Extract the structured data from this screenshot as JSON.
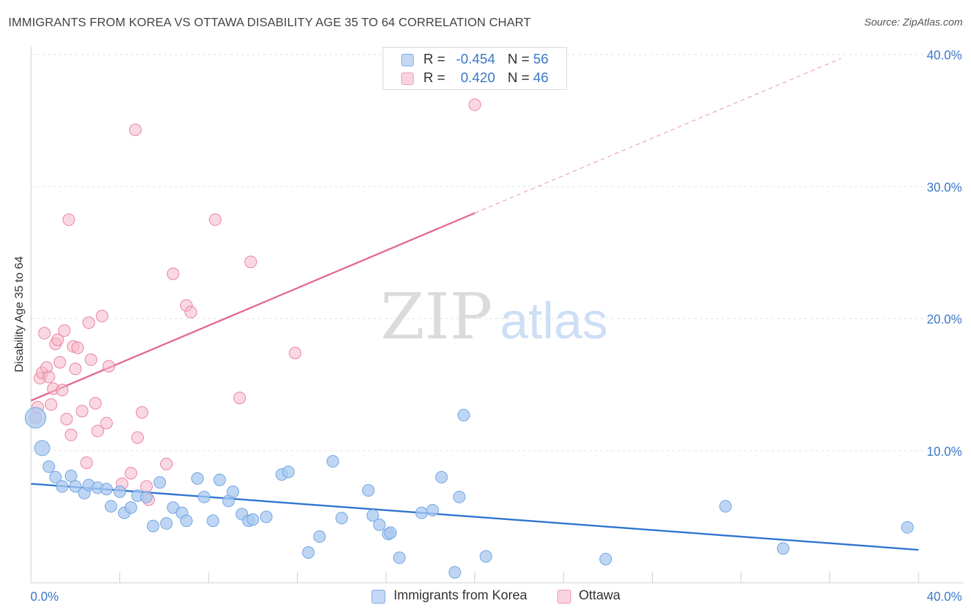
{
  "title": "IMMIGRANTS FROM KOREA VS OTTAWA DISABILITY AGE 35 TO 64 CORRELATION CHART",
  "source": "Source: ZipAtlas.com",
  "watermark": {
    "zip": "ZIP",
    "atlas": "atlas"
  },
  "legend_top": [
    {
      "r_label": "R =",
      "r_value": "-0.454",
      "n_label": "N =",
      "n_value": "56",
      "color": "#a8c8f0"
    },
    {
      "r_label": "R =",
      "r_value": "0.420",
      "n_label": "N =",
      "n_value": "46",
      "color": "#f5b8c8"
    }
  ],
  "legend_bottom": [
    {
      "label": "Immigrants from Korea",
      "color": "#a8c8f0"
    },
    {
      "label": "Ottawa",
      "color": "#f5b8c8"
    }
  ],
  "chart_data": {
    "type": "scatter",
    "title": "IMMIGRANTS FROM KOREA VS OTTAWA DISABILITY AGE 35 TO 64 CORRELATION CHART",
    "xlabel": "",
    "ylabel": "Disability Age 35 to 64",
    "xlim": [
      0,
      40
    ],
    "ylim": [
      0,
      40
    ],
    "x_tick_labels": [
      "0.0%",
      "40.0%"
    ],
    "y_ticks": [
      10,
      20,
      30,
      40
    ],
    "y_tick_labels": [
      "10.0%",
      "20.0%",
      "30.0%",
      "40.0%"
    ],
    "grid": "horizontal dashed",
    "series": [
      {
        "name": "Immigrants from Korea",
        "color": "#6fa3e0",
        "fill": "#a8c8f0",
        "r": -0.454,
        "n": 56,
        "trend": {
          "x": [
            0,
            40
          ],
          "y": [
            7.5,
            2.5
          ],
          "dashed_extension": false
        },
        "points": [
          [
            0.2,
            12.5,
            "large"
          ],
          [
            0.5,
            10.2,
            "medium"
          ],
          [
            0.8,
            8.8
          ],
          [
            1.1,
            8.0
          ],
          [
            1.4,
            7.3
          ],
          [
            1.8,
            8.1
          ],
          [
            2.0,
            7.3
          ],
          [
            2.4,
            6.8
          ],
          [
            2.6,
            7.4
          ],
          [
            3.0,
            7.2
          ],
          [
            3.4,
            7.1
          ],
          [
            3.6,
            5.8
          ],
          [
            4.0,
            6.9
          ],
          [
            4.2,
            5.3
          ],
          [
            4.5,
            5.7
          ],
          [
            4.8,
            6.6
          ],
          [
            5.2,
            6.5
          ],
          [
            5.5,
            4.3
          ],
          [
            5.8,
            7.6
          ],
          [
            6.1,
            4.5
          ],
          [
            6.4,
            5.7
          ],
          [
            6.8,
            5.3
          ],
          [
            7.0,
            4.7
          ],
          [
            7.5,
            7.9
          ],
          [
            7.8,
            6.5
          ],
          [
            8.2,
            4.7
          ],
          [
            8.5,
            7.8
          ],
          [
            8.9,
            6.2
          ],
          [
            9.1,
            6.9
          ],
          [
            9.5,
            5.2
          ],
          [
            9.8,
            4.7
          ],
          [
            10.0,
            4.8
          ],
          [
            10.6,
            5.0
          ],
          [
            11.3,
            8.2
          ],
          [
            11.6,
            8.4
          ],
          [
            12.5,
            2.3
          ],
          [
            13.0,
            3.5
          ],
          [
            13.6,
            9.2
          ],
          [
            14.0,
            4.9
          ],
          [
            15.2,
            7.0
          ],
          [
            15.4,
            5.1
          ],
          [
            15.7,
            4.4
          ],
          [
            16.1,
            3.7
          ],
          [
            16.2,
            3.8
          ],
          [
            16.6,
            1.9
          ],
          [
            17.6,
            5.3
          ],
          [
            18.1,
            5.5
          ],
          [
            18.5,
            8.0
          ],
          [
            19.1,
            0.8
          ],
          [
            19.3,
            6.5
          ],
          [
            19.5,
            12.7
          ],
          [
            20.5,
            2.0
          ],
          [
            25.9,
            1.8
          ],
          [
            31.3,
            5.8
          ],
          [
            33.9,
            2.6
          ],
          [
            39.5,
            4.2
          ]
        ]
      },
      {
        "name": "Ottawa",
        "color": "#e87fa0",
        "fill": "#f5b8c8",
        "r": 0.42,
        "n": 46,
        "trend": {
          "x": [
            0,
            20
          ],
          "y": [
            13.8,
            28.0
          ],
          "dashed_extension": {
            "x": [
              20,
              36.5
            ],
            "y": [
              28.0,
              39.7
            ]
          }
        },
        "points": [
          [
            0.2,
            12.5
          ],
          [
            0.3,
            13.3
          ],
          [
            0.4,
            15.5
          ],
          [
            0.5,
            15.9
          ],
          [
            0.6,
            18.9
          ],
          [
            0.7,
            16.3
          ],
          [
            0.8,
            15.6
          ],
          [
            0.9,
            13.5
          ],
          [
            1.0,
            14.7
          ],
          [
            1.1,
            18.1
          ],
          [
            1.2,
            18.4
          ],
          [
            1.3,
            16.7
          ],
          [
            1.4,
            14.6
          ],
          [
            1.5,
            19.1
          ],
          [
            1.6,
            12.4
          ],
          [
            1.7,
            27.5
          ],
          [
            1.8,
            11.2
          ],
          [
            1.9,
            17.9
          ],
          [
            2.0,
            16.2
          ],
          [
            2.1,
            17.8
          ],
          [
            2.3,
            13.0
          ],
          [
            2.5,
            9.1
          ],
          [
            2.6,
            19.7
          ],
          [
            2.7,
            16.9
          ],
          [
            2.9,
            13.6
          ],
          [
            3.0,
            11.5
          ],
          [
            3.2,
            20.2
          ],
          [
            3.4,
            12.1
          ],
          [
            3.5,
            16.4
          ],
          [
            4.1,
            7.5
          ],
          [
            4.5,
            8.3
          ],
          [
            4.7,
            34.3
          ],
          [
            4.8,
            11.0
          ],
          [
            5.0,
            12.9
          ],
          [
            5.2,
            7.3
          ],
          [
            5.3,
            6.3
          ],
          [
            6.1,
            9.0
          ],
          [
            6.4,
            23.4
          ],
          [
            7.0,
            21.0
          ],
          [
            7.2,
            20.5
          ],
          [
            8.3,
            27.5
          ],
          [
            9.4,
            14.0
          ],
          [
            9.9,
            24.3
          ],
          [
            11.9,
            17.4
          ],
          [
            20.0,
            36.2
          ],
          [
            36.0,
            36.0,
            "hidden"
          ]
        ]
      }
    ]
  }
}
